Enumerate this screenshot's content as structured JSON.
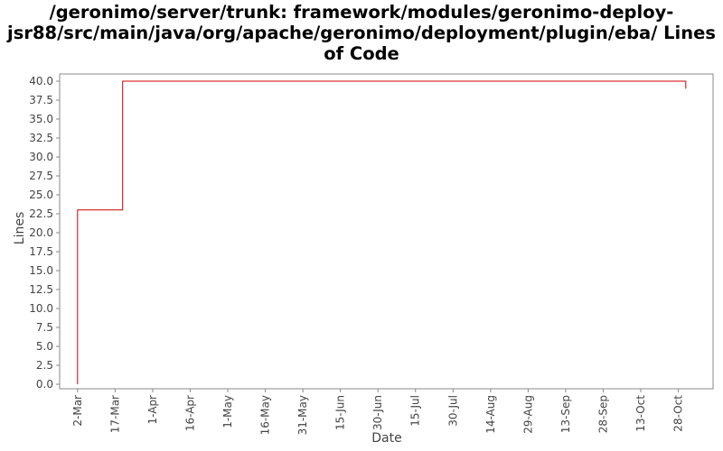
{
  "title_lines": [
    "/geronimo/server/trunk: framework/modules/geronimo-deploy-",
    "jsr88/src/main/java/org/apache/geronimo/deployment/plugin/eba/ Lines",
    "of Code"
  ],
  "chart_data": {
    "type": "line",
    "title": "/geronimo/server/trunk: framework/modules/geronimo-deploy-jsr88/src/main/java/org/apache/geronimo/deployment/plugin/eba/ Lines of Code",
    "xlabel": "Date",
    "ylabel": "Lines",
    "ylim": [
      0,
      41
    ],
    "xlim": [
      "2010-02-25",
      "2010-11-08"
    ],
    "y_ticks": [
      "0.0",
      "2.5",
      "5.0",
      "7.5",
      "10.0",
      "12.5",
      "15.0",
      "17.5",
      "20.0",
      "22.5",
      "25.0",
      "27.5",
      "30.0",
      "32.5",
      "35.0",
      "37.5",
      "40.0"
    ],
    "x_ticks": [
      {
        "label": "2-Mar",
        "date": "2010-03-02"
      },
      {
        "label": "17-Mar",
        "date": "2010-03-17"
      },
      {
        "label": "1-Apr",
        "date": "2010-04-01"
      },
      {
        "label": "16-Apr",
        "date": "2010-04-16"
      },
      {
        "label": "1-May",
        "date": "2010-05-01"
      },
      {
        "label": "16-May",
        "date": "2010-05-16"
      },
      {
        "label": "31-May",
        "date": "2010-05-31"
      },
      {
        "label": "15-Jun",
        "date": "2010-06-15"
      },
      {
        "label": "30-Jun",
        "date": "2010-06-30"
      },
      {
        "label": "15-Jul",
        "date": "2010-07-15"
      },
      {
        "label": "30-Jul",
        "date": "2010-07-30"
      },
      {
        "label": "14-Aug",
        "date": "2010-08-14"
      },
      {
        "label": "29-Aug",
        "date": "2010-08-29"
      },
      {
        "label": "13-Sep",
        "date": "2010-09-13"
      },
      {
        "label": "28-Sep",
        "date": "2010-09-28"
      },
      {
        "label": "13-Oct",
        "date": "2010-10-13"
      },
      {
        "label": "28-Oct",
        "date": "2010-10-28"
      }
    ],
    "grid": false,
    "legend": "none",
    "series": [
      {
        "color": "#cc0000",
        "step": true,
        "points": [
          {
            "x": "2010-03-02",
            "y": 0
          },
          {
            "x": "2010-03-02",
            "y": 23
          },
          {
            "x": "2010-03-20",
            "y": 23
          },
          {
            "x": "2010-03-20",
            "y": 40
          },
          {
            "x": "2010-10-31",
            "y": 40
          },
          {
            "x": "2010-10-31",
            "y": 39
          }
        ]
      }
    ]
  },
  "colors": {
    "line": "#cc0000",
    "axis": "#888888",
    "plot_border": "#888888",
    "tick_text": "#444444"
  }
}
